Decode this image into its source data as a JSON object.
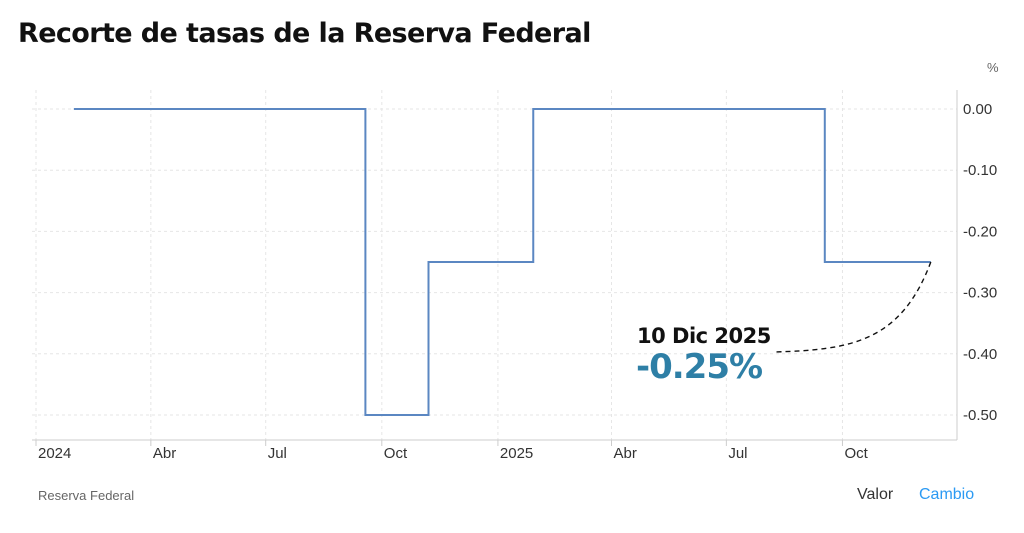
{
  "header": {
    "title": "Recorte de tasas de la Reserva Federal"
  },
  "footer": {
    "source": "Reserva Federal",
    "toggle_valor": "Valor",
    "toggle_cambio": "Cambio"
  },
  "callout": {
    "date": "10 Dic 2025",
    "value": "-0.25%"
  },
  "colors": {
    "line": "#5b87c2",
    "accent": "#2b9af3",
    "callout": "#2e7fa6",
    "grid": "#e6e6e6"
  },
  "chart_data": {
    "type": "line",
    "title": "Recorte de tasas de la Reserva Federal",
    "xlabel": "",
    "ylabel": "",
    "y_unit_label": "%",
    "ylim": [
      -0.55,
      0.03
    ],
    "y_ticks": [
      0.0,
      -0.1,
      -0.2,
      -0.3,
      -0.4,
      -0.5
    ],
    "y_tick_labels": [
      "0.00",
      "-0.10",
      "-0.20",
      "-0.30",
      "-0.40",
      "-0.50"
    ],
    "xlim": [
      "2024-01-01",
      "2025-12-26"
    ],
    "x_ticks": [
      {
        "label": "2024",
        "date": "2024-01-01"
      },
      {
        "label": "Abr",
        "date": "2024-04-01"
      },
      {
        "label": "Jul",
        "date": "2024-07-01"
      },
      {
        "label": "Oct",
        "date": "2024-10-01"
      },
      {
        "label": "2025",
        "date": "2025-01-01"
      },
      {
        "label": "Abr",
        "date": "2025-04-01"
      },
      {
        "label": "Jul",
        "date": "2025-07-01"
      },
      {
        "label": "Oct",
        "date": "2025-10-01"
      }
    ],
    "grid": true,
    "legend": "none",
    "step": true,
    "series": [
      {
        "points": [
          {
            "x": "2024-01-31",
            "y": 0.0
          },
          {
            "x": "2024-03-20",
            "y": 0.0
          },
          {
            "x": "2024-05-01",
            "y": 0.0
          },
          {
            "x": "2024-06-12",
            "y": 0.0
          },
          {
            "x": "2024-07-31",
            "y": 0.0
          },
          {
            "x": "2024-09-18",
            "y": -0.5
          },
          {
            "x": "2024-11-07",
            "y": -0.25
          },
          {
            "x": "2024-12-18",
            "y": -0.25
          },
          {
            "x": "2025-01-29",
            "y": 0.0
          },
          {
            "x": "2025-03-19",
            "y": 0.0
          },
          {
            "x": "2025-05-07",
            "y": 0.0
          },
          {
            "x": "2025-06-18",
            "y": 0.0
          },
          {
            "x": "2025-07-30",
            "y": 0.0
          },
          {
            "x": "2025-09-17",
            "y": -0.25
          },
          {
            "x": "2025-10-29",
            "y": -0.25
          },
          {
            "x": "2025-12-10",
            "y": -0.25
          }
        ]
      }
    ]
  }
}
